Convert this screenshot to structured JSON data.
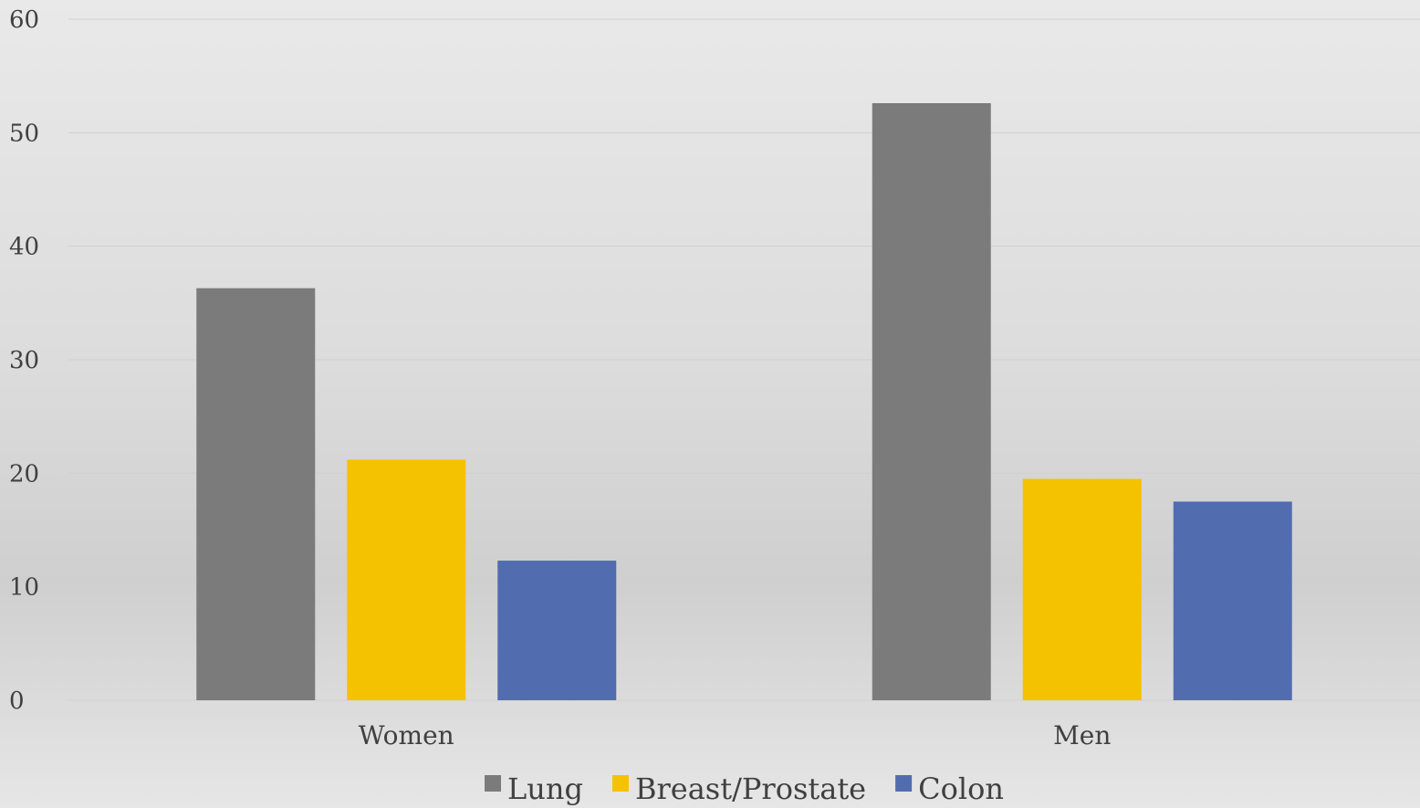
{
  "chart_data": {
    "type": "bar",
    "categories": [
      "Women",
      "Men"
    ],
    "series": [
      {
        "name": "Lung",
        "values": [
          36.3,
          52.6
        ],
        "color": "#7b7b7b"
      },
      {
        "name": "Breast/Prostate",
        "values": [
          21.2,
          19.5
        ],
        "color": "#f5c200"
      },
      {
        "name": "Colon",
        "values": [
          12.3,
          17.5
        ],
        "color": "#516db0"
      }
    ],
    "title": "",
    "xlabel": "",
    "ylabel": "",
    "ylim": [
      0,
      60
    ],
    "yticks": [
      0,
      10,
      20,
      30,
      40,
      50,
      60
    ],
    "grid": true,
    "legend_position": "bottom"
  }
}
